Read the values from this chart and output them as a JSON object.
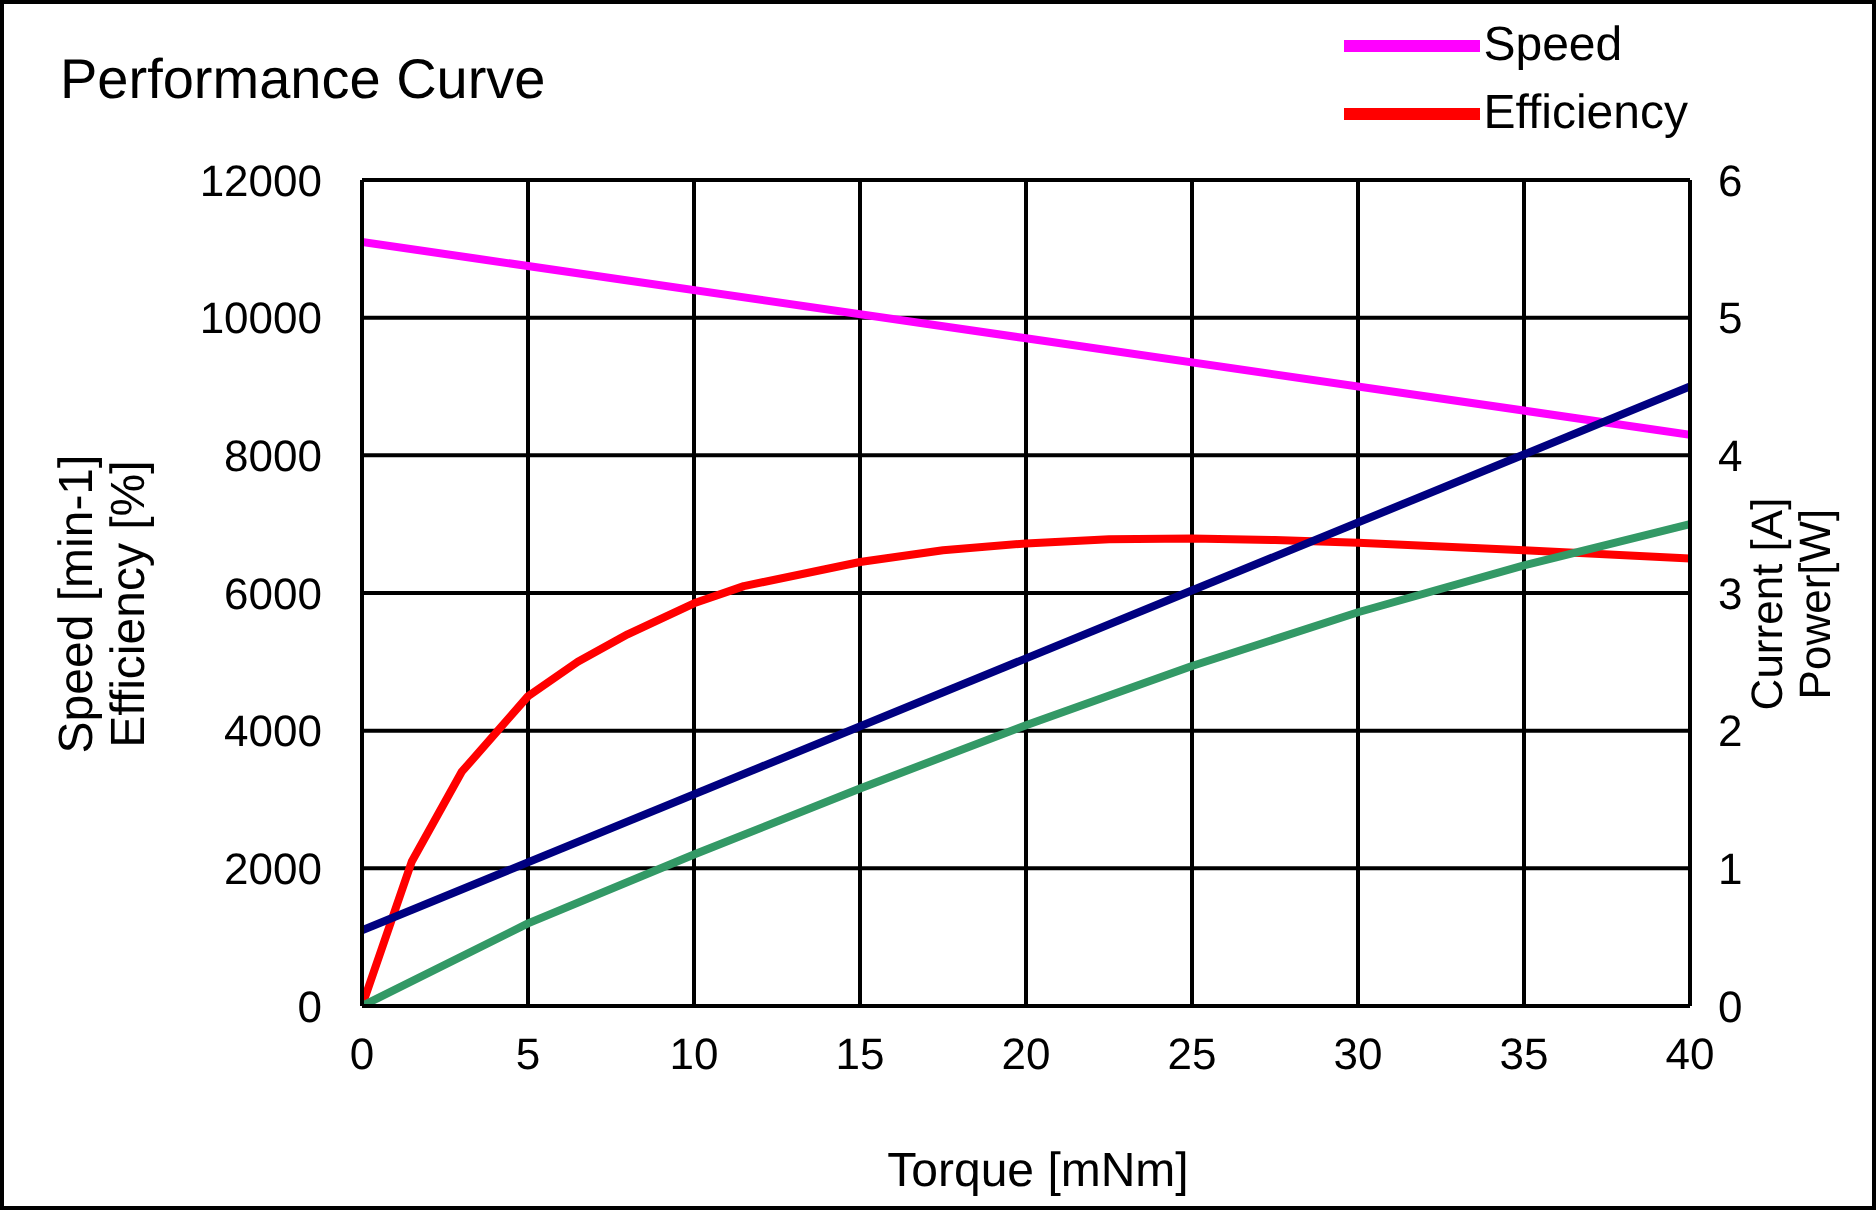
{
  "chart_data": {
    "type": "line",
    "title": "Performance Curve",
    "xlabel": "Torque [mNm]",
    "ylabel": "Speed [min-1]\nEfficiency [%]",
    "y2label": "Current [A]\nPower[W]",
    "xlim": [
      0,
      40
    ],
    "xticks": [
      0,
      5,
      10,
      15,
      20,
      25,
      30,
      35,
      40
    ],
    "ylim": [
      0,
      12000
    ],
    "yticks": [
      0,
      2000,
      4000,
      6000,
      8000,
      10000,
      12000
    ],
    "y2lim": [
      0,
      6
    ],
    "y2ticks": [
      0,
      1,
      2,
      3,
      4,
      5,
      6
    ],
    "grid": true,
    "legend": "top right",
    "marker": "none",
    "line_style": "solid",
    "series": [
      {
        "name": "Speed",
        "color": "#ff00ff",
        "x": [
          0,
          20,
          40
        ],
        "values": [
          11100,
          9700,
          8300
        ]
      },
      {
        "name": "Efficiency",
        "color": "#ff0000",
        "x": [
          0,
          1.5,
          3,
          5,
          6.5,
          8,
          10,
          11.5,
          15,
          17.5,
          20,
          22.5,
          25,
          27.5,
          30,
          35,
          40
        ],
        "values": [
          0,
          2100,
          3400,
          4500,
          5000,
          5400,
          5850,
          6100,
          6450,
          6620,
          6720,
          6780,
          6790,
          6770,
          6730,
          6620,
          6500
        ]
      },
      {
        "color": "#000080",
        "axis": "y2",
        "x": [
          0,
          40
        ],
        "values": [
          0.55,
          4.5
        ]
      },
      {
        "color": "#339966",
        "axis": "y2",
        "x": [
          0,
          5,
          10,
          15,
          20,
          25,
          30,
          35,
          40
        ],
        "values": [
          0,
          0.6,
          1.1,
          1.58,
          2.04,
          2.47,
          2.86,
          3.2,
          3.5
        ]
      }
    ]
  }
}
